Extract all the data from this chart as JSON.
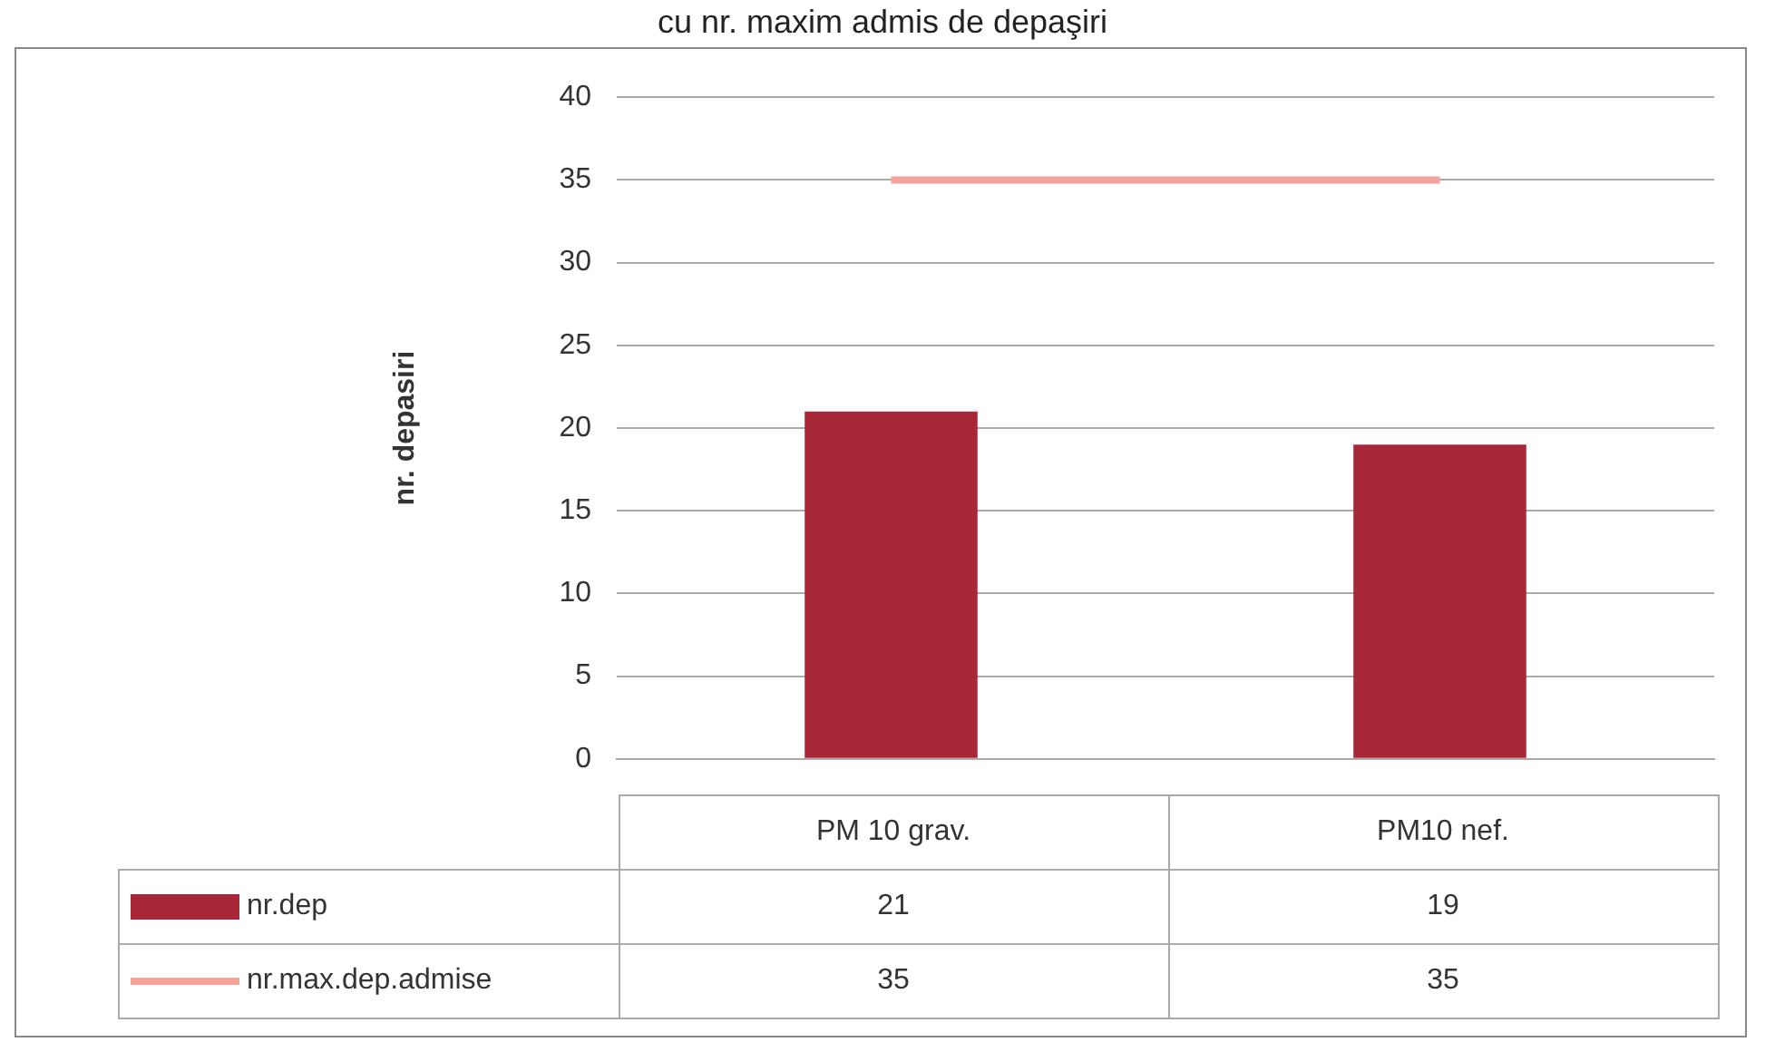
{
  "chart_data": {
    "type": "bar",
    "title": "cu nr. maxim admis de depaşiri",
    "ylabel": "nr. depasiri",
    "categories": [
      "PM 10 grav.",
      "PM10 nef."
    ],
    "series": [
      {
        "name": "nr.dep",
        "color": "#a8283a",
        "values": [
          21,
          19
        ]
      },
      {
        "name": "nr.max.dep.admise",
        "type": "line",
        "color": "#f4a39a",
        "values": [
          35,
          35
        ]
      }
    ],
    "ylim": [
      0,
      40
    ],
    "yticks": [
      0,
      5,
      10,
      15,
      20,
      25,
      30,
      35,
      40
    ],
    "grid": "y",
    "legend": "bottom",
    "data_labels": true,
    "marker": "none"
  }
}
